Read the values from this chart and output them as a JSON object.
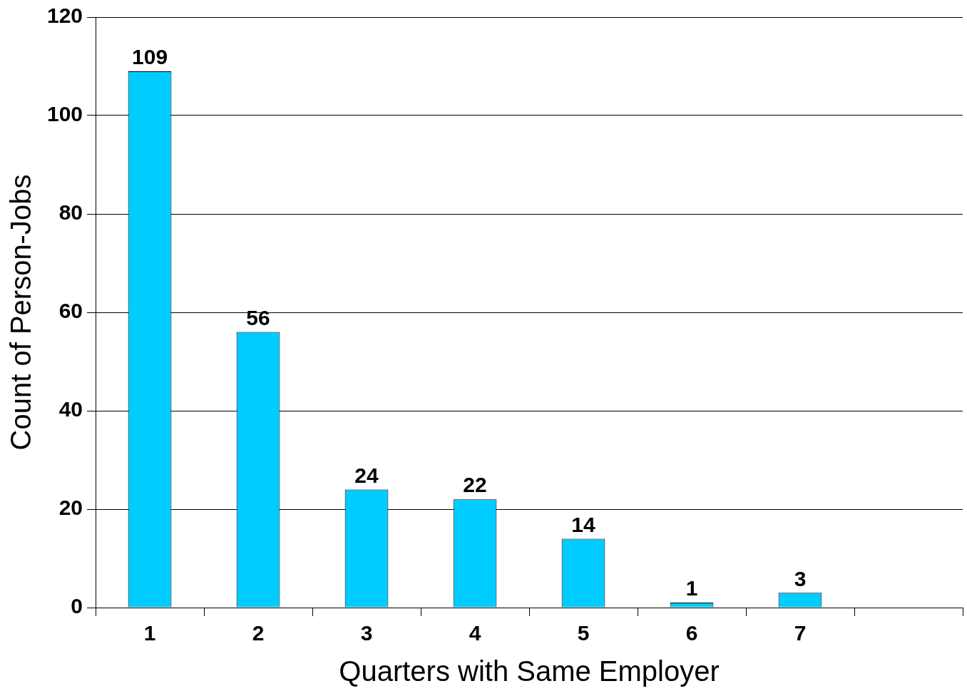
{
  "chart_data": {
    "type": "bar",
    "xlabel": "Quarters with Same Employer",
    "ylabel": "Count of Person-Jobs",
    "categories": [
      "1",
      "2",
      "3",
      "4",
      "5",
      "6",
      "7",
      null
    ],
    "values": [
      109,
      56,
      24,
      22,
      14,
      1,
      3,
      null
    ],
    "color": "#00ccff",
    "ylim": [
      0,
      120
    ],
    "yticks": [
      0,
      20,
      40,
      60,
      80,
      100,
      120
    ],
    "grid": "y",
    "data_labels": true,
    "legend": false
  }
}
